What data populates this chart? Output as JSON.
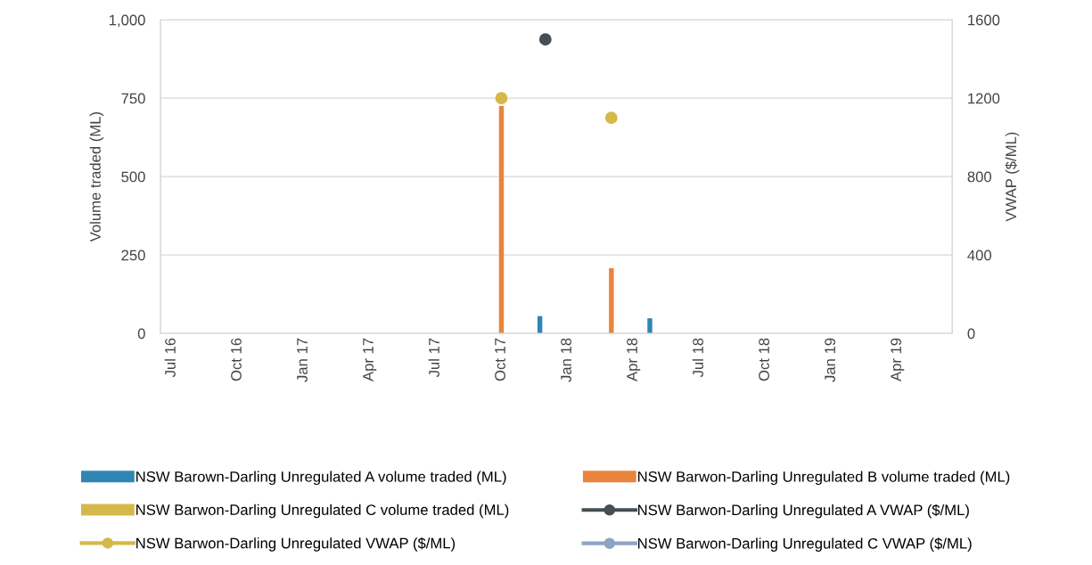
{
  "chart_data": {
    "type": "bar",
    "ylabel": "Volume traded (ML)",
    "y2label": "VWAP ($/ML)",
    "categories": [
      "Jul 16",
      null,
      null,
      "Oct 16",
      null,
      null,
      "Jan 17",
      null,
      null,
      "Apr 17",
      null,
      null,
      "Jul 17",
      null,
      null,
      "Oct 17",
      null,
      null,
      "Jan 18",
      null,
      null,
      "Apr 18",
      null,
      null,
      "Jul 18",
      null,
      null,
      "Oct 18",
      null,
      null,
      "Jan 19",
      null,
      null,
      "Apr 19",
      null,
      null
    ],
    "ylim": [
      0,
      1000
    ],
    "yticks": [
      0,
      250,
      500,
      750,
      {
        "value": 1000,
        "label": "1,000"
      }
    ],
    "y2lim": [
      0,
      1600
    ],
    "y2ticks": [
      0,
      400,
      800,
      1200,
      1600
    ],
    "grid": "y",
    "legend": "bottom",
    "marker": "circle",
    "series": [
      {
        "name": "NSW Barown-Darling Unregulated A volume traded (ML)",
        "color": "#2f86b4",
        "values": [
          null,
          null,
          null,
          null,
          null,
          null,
          null,
          null,
          null,
          null,
          null,
          null,
          null,
          null,
          null,
          null,
          null,
          55,
          null,
          null,
          null,
          null,
          48,
          null,
          null,
          null,
          null,
          null,
          null,
          null,
          null,
          null,
          null,
          null,
          null,
          null
        ]
      },
      {
        "name": "NSW Barwon-Darling Unregulated B volume traded (ML)",
        "color": "#e8843c",
        "values": [
          null,
          null,
          null,
          null,
          null,
          null,
          null,
          null,
          null,
          null,
          null,
          null,
          null,
          null,
          null,
          725,
          null,
          null,
          null,
          null,
          208,
          null,
          null,
          null,
          null,
          null,
          null,
          null,
          null,
          null,
          null,
          null,
          null,
          null,
          null,
          null
        ]
      },
      {
        "name": "NSW Barwon-Darling Unregulated C volume traded (ML)",
        "color": "#d4b94a",
        "values": [
          null,
          null,
          null,
          null,
          null,
          null,
          null,
          null,
          null,
          null,
          null,
          null,
          null,
          null,
          null,
          null,
          null,
          null,
          null,
          null,
          null,
          null,
          null,
          null,
          null,
          null,
          null,
          null,
          null,
          null,
          null,
          null,
          null,
          null,
          null,
          null
        ]
      },
      {
        "name": "NSW Barwon-Darling Unregulated A VWAP ($/ML)",
        "type": "scatter",
        "axis": "y2",
        "color": "#454f55",
        "values": [
          null,
          null,
          null,
          null,
          null,
          null,
          null,
          null,
          null,
          null,
          null,
          null,
          null,
          null,
          null,
          null,
          null,
          1500,
          null,
          null,
          null,
          null,
          null,
          null,
          null,
          null,
          null,
          null,
          null,
          null,
          null,
          null,
          null,
          null,
          null,
          null
        ]
      },
      {
        "name": "NSW Barwon-Darling Unregulated VWAP ($/ML)",
        "type": "scatter",
        "axis": "y2",
        "color": "#d4b94a",
        "values": [
          null,
          null,
          null,
          null,
          null,
          null,
          null,
          null,
          null,
          null,
          null,
          null,
          null,
          null,
          null,
          1200,
          null,
          null,
          null,
          null,
          1100,
          null,
          null,
          null,
          null,
          null,
          null,
          null,
          null,
          null,
          null,
          null,
          null,
          null,
          null,
          null
        ]
      },
      {
        "name": "NSW Barwon-Darling Unregulated C VWAP ($/ML)",
        "type": "scatter",
        "axis": "y2",
        "color": "#8da3c4",
        "values": [
          null,
          null,
          null,
          null,
          null,
          null,
          null,
          null,
          null,
          null,
          null,
          null,
          null,
          null,
          null,
          null,
          null,
          null,
          null,
          null,
          null,
          null,
          null,
          null,
          null,
          null,
          null,
          null,
          null,
          null,
          null,
          null,
          null,
          null,
          null,
          null
        ]
      }
    ]
  }
}
